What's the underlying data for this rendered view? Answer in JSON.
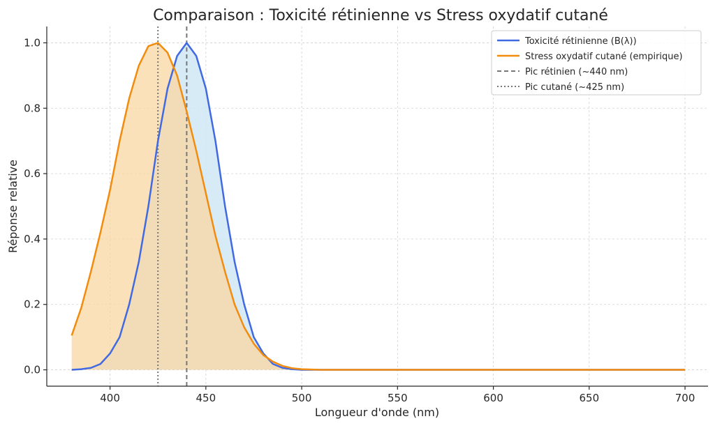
{
  "chart_data": {
    "type": "area",
    "title": "Comparaison : Toxicité rétinienne vs Stress oxydatif cutané",
    "xlabel": "Longueur d'onde (nm)",
    "ylabel": "Réponse relative",
    "xlim": [
      367,
      712
    ],
    "ylim": [
      -0.05,
      1.05
    ],
    "x_ticks": [
      "400",
      "450",
      "500",
      "550",
      "600",
      "650",
      "700"
    ],
    "x_tick_values": [
      400,
      450,
      500,
      550,
      600,
      650,
      700
    ],
    "y_ticks": [
      "0.0",
      "0.2",
      "0.4",
      "0.6",
      "0.8",
      "1.0"
    ],
    "y_tick_values": [
      0.0,
      0.2,
      0.4,
      0.6,
      0.8,
      1.0
    ],
    "grid": true,
    "legend_position": "top-right",
    "x": [
      380,
      385,
      390,
      395,
      400,
      405,
      410,
      415,
      420,
      425,
      430,
      435,
      440,
      445,
      450,
      455,
      460,
      465,
      470,
      475,
      480,
      485,
      490,
      495,
      500,
      510,
      520,
      550,
      600,
      650,
      700
    ],
    "series": [
      {
        "name": "Toxicité rétinienne (B(λ))",
        "color": "#4169e1",
        "fill": "#cfe8f5",
        "values": [
          0.0,
          0.002,
          0.006,
          0.018,
          0.05,
          0.1,
          0.2,
          0.33,
          0.5,
          0.7,
          0.86,
          0.96,
          1.0,
          0.96,
          0.86,
          0.7,
          0.5,
          0.33,
          0.2,
          0.1,
          0.05,
          0.018,
          0.006,
          0.002,
          0.0,
          0.0,
          0.0,
          0.0,
          0.0,
          0.0,
          0.0
        ]
      },
      {
        "name": "Stress oxydatif cutané (empirique)",
        "color": "#f28c0f",
        "fill": "#f9d7a2",
        "values": [
          0.105,
          0.19,
          0.3,
          0.42,
          0.55,
          0.7,
          0.83,
          0.93,
          0.99,
          1.0,
          0.97,
          0.9,
          0.79,
          0.67,
          0.54,
          0.41,
          0.3,
          0.2,
          0.13,
          0.08,
          0.045,
          0.025,
          0.012,
          0.005,
          0.002,
          0.0,
          0.0,
          0.0,
          0.0,
          0.0,
          0.0
        ]
      }
    ],
    "reference_lines": [
      {
        "name": "Pic rétinien (~440 nm)",
        "x": 440,
        "style": "dashed",
        "color": "#777777"
      },
      {
        "name": "Pic cutané (~425 nm)",
        "x": 425,
        "style": "dotted",
        "color": "#777777"
      }
    ]
  }
}
